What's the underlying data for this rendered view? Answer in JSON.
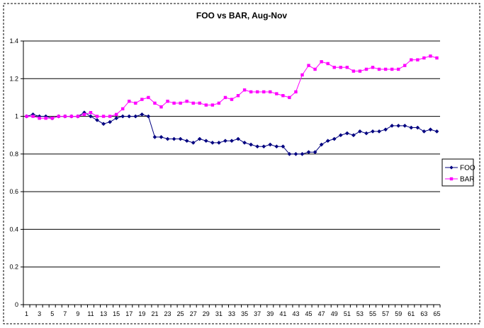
{
  "chart_data": {
    "type": "line",
    "title": "FOO vs BAR, Aug-Nov",
    "xlabel": "",
    "ylabel": "",
    "ylim": [
      0,
      1.4
    ],
    "yticks": [
      "0",
      "0.2",
      "0.4",
      "0.6",
      "0.8",
      "1",
      "1.2",
      "1.4"
    ],
    "x": [
      1,
      2,
      3,
      4,
      5,
      6,
      7,
      8,
      9,
      10,
      11,
      12,
      13,
      14,
      15,
      16,
      17,
      18,
      19,
      20,
      21,
      22,
      23,
      24,
      25,
      26,
      27,
      28,
      29,
      30,
      31,
      32,
      33,
      34,
      35,
      36,
      37,
      38,
      39,
      40,
      41,
      42,
      43,
      44,
      45,
      46,
      47,
      48,
      49,
      50,
      51,
      52,
      53,
      54,
      55,
      56,
      57,
      58,
      59,
      60,
      61,
      62,
      63,
      64,
      65
    ],
    "xtick_labels": [
      "1",
      "3",
      "5",
      "7",
      "9",
      "11",
      "13",
      "15",
      "17",
      "19",
      "21",
      "23",
      "25",
      "27",
      "29",
      "31",
      "33",
      "35",
      "37",
      "39",
      "41",
      "43",
      "45",
      "47",
      "49",
      "51",
      "53",
      "55",
      "57",
      "59",
      "61",
      "63",
      "65"
    ],
    "grid": true,
    "legend_position": "right",
    "series": [
      {
        "name": "FOO",
        "color": "#000080",
        "marker": "diamond",
        "values": [
          1.0,
          1.01,
          1.0,
          1.0,
          0.99,
          1.0,
          1.0,
          1.0,
          1.0,
          1.02,
          1.0,
          0.98,
          0.96,
          0.97,
          0.99,
          1.0,
          1.0,
          1.0,
          1.01,
          1.0,
          0.89,
          0.89,
          0.88,
          0.88,
          0.88,
          0.87,
          0.86,
          0.88,
          0.87,
          0.86,
          0.86,
          0.87,
          0.87,
          0.88,
          0.86,
          0.85,
          0.84,
          0.84,
          0.85,
          0.84,
          0.84,
          0.8,
          0.8,
          0.8,
          0.81,
          0.81,
          0.85,
          0.87,
          0.88,
          0.9,
          0.91,
          0.9,
          0.92,
          0.91,
          0.92,
          0.92,
          0.93,
          0.95,
          0.95,
          0.95,
          0.94,
          0.94,
          0.92,
          0.93,
          0.92
        ]
      },
      {
        "name": "BAR",
        "color": "#ff00ff",
        "marker": "square",
        "values": [
          1.0,
          1.0,
          0.99,
          0.99,
          0.99,
          1.0,
          1.0,
          1.0,
          1.0,
          1.01,
          1.02,
          1.0,
          1.0,
          1.0,
          1.01,
          1.04,
          1.08,
          1.07,
          1.09,
          1.1,
          1.07,
          1.05,
          1.08,
          1.07,
          1.07,
          1.08,
          1.07,
          1.07,
          1.06,
          1.06,
          1.07,
          1.1,
          1.09,
          1.11,
          1.14,
          1.13,
          1.13,
          1.13,
          1.13,
          1.12,
          1.11,
          1.1,
          1.13,
          1.22,
          1.27,
          1.25,
          1.29,
          1.28,
          1.26,
          1.26,
          1.26,
          1.24,
          1.24,
          1.25,
          1.26,
          1.25,
          1.25,
          1.25,
          1.25,
          1.27,
          1.3,
          1.3,
          1.31,
          1.32,
          1.31
        ]
      }
    ]
  }
}
